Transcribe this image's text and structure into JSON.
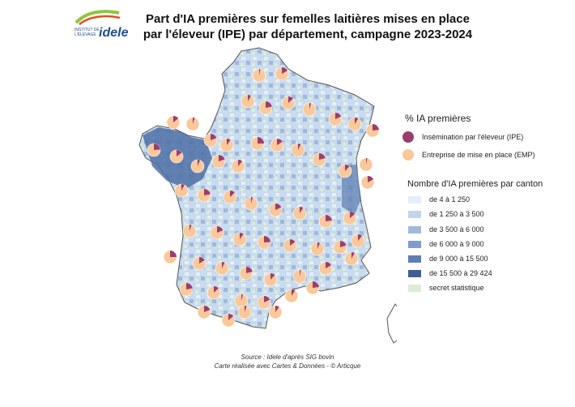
{
  "logo": {
    "org_small": "INSTITUT DE L'ÉLEVAGE",
    "org_word": "idele"
  },
  "title": {
    "line1": "Part d'IA premières sur femelles laitières mises en place",
    "line2": "par l'éleveur (IPE) par département, campagne 2023-2024"
  },
  "legend_pie": {
    "title": "% IA premières",
    "items": [
      {
        "label": "Insémination par l'éleveur (IPE)",
        "color": "#9c3d6e"
      },
      {
        "label": "Entreprise de mise en place (EMP)",
        "color": "#f9c89b"
      }
    ]
  },
  "legend_choropleth": {
    "title": "Nombre d'IA premières par canton",
    "classes": [
      {
        "label": "de 4 à 1 250",
        "color": "#e4eff8"
      },
      {
        "label": "de 1 250 à 3 500",
        "color": "#c2d6ea"
      },
      {
        "label": "de 3 500 à 6 000",
        "color": "#9fb9da"
      },
      {
        "label": "de 6 000 à 9 000",
        "color": "#7f9dc9"
      },
      {
        "label": "de 9 000 à 15 500",
        "color": "#5d7fb3"
      },
      {
        "label": "de 15 500 à 29 424",
        "color": "#3f5f96"
      },
      {
        "label": "secret statistique",
        "color": "#dbedd5"
      }
    ]
  },
  "source": {
    "line1": "Source : Idele d'après SIG bovin",
    "line2": "Carte réalisée avec Cartes & Données - © Articque"
  }
}
